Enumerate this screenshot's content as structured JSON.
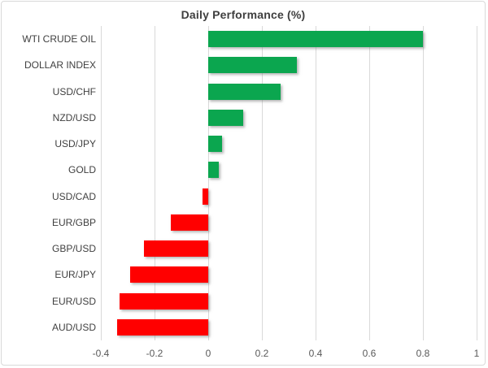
{
  "chart_data": {
    "type": "bar",
    "orientation": "horizontal",
    "title": "Daily Performance (%)",
    "categories": [
      "WTI CRUDE OIL",
      "DOLLAR INDEX",
      "USD/CHF",
      "NZD/USD",
      "USD/JPY",
      "GOLD",
      "USD/CAD",
      "EUR/GBP",
      "GBP/USD",
      "EUR/JPY",
      "EUR/USD",
      "AUD/USD"
    ],
    "values": [
      0.8,
      0.33,
      0.27,
      0.13,
      0.05,
      0.04,
      -0.02,
      -0.14,
      -0.24,
      -0.29,
      -0.33,
      -0.34
    ],
    "xlabel": "",
    "ylabel": "",
    "xlim": [
      -0.4,
      1
    ],
    "x_ticks": [
      "-0.4",
      "-0.2",
      "0",
      "0.2",
      "0.4",
      "0.6",
      "0.8",
      "1"
    ],
    "x_tick_values": [
      -0.4,
      -0.2,
      0,
      0.2,
      0.4,
      0.6,
      0.8,
      1
    ],
    "grid": true,
    "legend": "none",
    "colors": {
      "positive": "#0BA64F",
      "negative": "#FF0000",
      "gridline": "#D9D9D9",
      "title_text": "#3F3F3F",
      "category_text": "#404040",
      "tick_text": "#595959",
      "frame_border": "#D9D9D9"
    }
  }
}
